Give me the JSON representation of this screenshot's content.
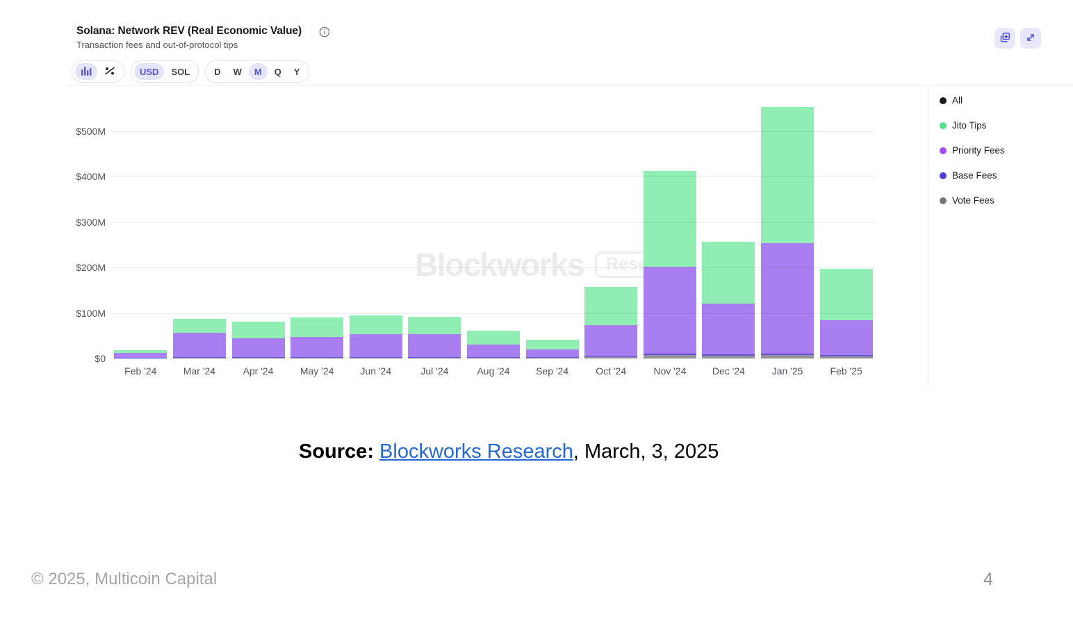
{
  "header": {
    "title": "Solana: Network REV (Real Economic Value)",
    "subtitle": "Transaction fees and out-of-protocol tips"
  },
  "toolbar": {
    "view_toggle": {
      "items": [
        {
          "icon": "bar-chart-icon",
          "selected": true
        },
        {
          "icon": "percent-icon",
          "selected": false
        }
      ]
    },
    "currency_toggle": {
      "options": [
        "USD",
        "SOL"
      ],
      "selected": "USD"
    },
    "period_toggle": {
      "options": [
        "D",
        "W",
        "M",
        "Q",
        "Y"
      ],
      "selected": "M"
    }
  },
  "legend": {
    "items": [
      {
        "label": "All",
        "color": "#1a1a1e"
      },
      {
        "label": "Jito Tips",
        "color": "#54e38e"
      },
      {
        "label": "Priority Fees",
        "color": "#a34ff5"
      },
      {
        "label": "Base Fees",
        "color": "#4f42d9"
      },
      {
        "label": "Vote Fees",
        "color": "#76767c"
      }
    ]
  },
  "watermark": {
    "brand": "Blockworks",
    "badge": "Research"
  },
  "chart_data": {
    "type": "bar",
    "stacked": true,
    "title": "Solana: Network REV (Real Economic Value)",
    "subtitle": "Transaction fees and out-of-protocol tips",
    "unit": "USD millions",
    "categories": [
      "Feb '24",
      "Mar '24",
      "Apr '24",
      "May '24",
      "Jun '24",
      "Jul '24",
      "Aug '24",
      "Sep '24",
      "Oct '24",
      "Nov '24",
      "Dec '24",
      "Jan '25",
      "Feb '25"
    ],
    "yticks": [
      0,
      100,
      200,
      300,
      400,
      500
    ],
    "ytick_labels": [
      "$0",
      "$100M",
      "$200M",
      "$300M",
      "$400M",
      "$500M"
    ],
    "ylim": [
      0,
      590
    ],
    "grid": "horizontal",
    "legend_position": "right",
    "series": [
      {
        "name": "Vote Fees",
        "color": "#94949a",
        "values": [
          1,
          2,
          2,
          2,
          2,
          2,
          2,
          2,
          3,
          8,
          6,
          8,
          4
        ]
      },
      {
        "name": "Base Fees",
        "color": "#5f54da",
        "values": [
          1,
          1,
          1,
          1,
          1,
          1,
          1,
          1,
          1,
          2,
          3,
          2,
          3
        ]
      },
      {
        "name": "Priority Fees",
        "color": "#a87ef0",
        "values": [
          10,
          54,
          42,
          45,
          50,
          51,
          28,
          17,
          70,
          192,
          112,
          244,
          77
        ]
      },
      {
        "name": "Jito Tips",
        "color": "#90eeb3",
        "values": [
          6,
          30,
          36,
          42,
          42,
          38,
          30,
          21,
          83,
          211,
          136,
          299,
          113
        ]
      }
    ]
  },
  "source_line": {
    "label": "Source:",
    "link": "Blockworks Research",
    "suffix": ", March, 3, 2025"
  },
  "footer": {
    "copyright": "© 2025, Multicoin Capital",
    "page": "4"
  }
}
